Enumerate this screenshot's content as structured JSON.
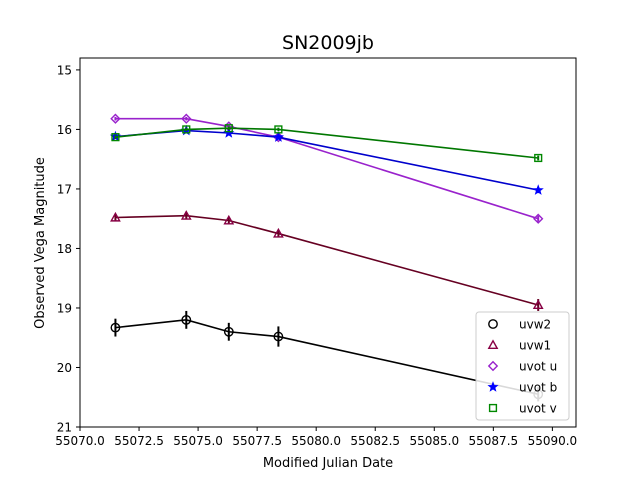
{
  "chart_data": {
    "type": "line",
    "title": "SN2009jb",
    "xlabel": "Modified Julian Date",
    "ylabel": "Observed Vega Magnitude",
    "xlim": [
      55070,
      55091
    ],
    "ylim": [
      21,
      14.8
    ],
    "y_inverted": true,
    "x_ticks": [
      55070.0,
      55072.5,
      55075.0,
      55077.5,
      55080.0,
      55082.5,
      55085.0,
      55087.5,
      55090.0
    ],
    "x_tick_labels": [
      "55070.0",
      "55072.5",
      "55075.0",
      "55077.5",
      "55080.0",
      "55082.5",
      "55085.0",
      "55087.5",
      "55090.0"
    ],
    "y_ticks": [
      15,
      16,
      17,
      18,
      19,
      20,
      21
    ],
    "y_tick_labels": [
      "15",
      "16",
      "17",
      "18",
      "19",
      "20",
      "21"
    ],
    "grid": false,
    "legend_position": "lower-right",
    "series": [
      {
        "name": "uvw2",
        "marker": "circle",
        "line_color": "#000000",
        "marker_color": "#000000",
        "x": [
          55071.5,
          55074.5,
          55076.3,
          55078.4,
          55089.4
        ],
        "y": [
          19.33,
          19.2,
          19.4,
          19.48,
          20.45
        ],
        "err": [
          0.15,
          0.15,
          0.15,
          0.17,
          0.12
        ]
      },
      {
        "name": "uvw1",
        "marker": "triangle",
        "line_color": "#660022",
        "marker_color": "#880044",
        "x": [
          55071.5,
          55074.5,
          55076.3,
          55078.4,
          55089.4
        ],
        "y": [
          17.48,
          17.45,
          17.53,
          17.75,
          18.95
        ],
        "err": [
          0.05,
          0.05,
          0.05,
          0.06,
          0.1
        ]
      },
      {
        "name": "uvot u",
        "marker": "diamond",
        "line_color": "#9922cc",
        "marker_color": "#9922cc",
        "x": [
          55071.5,
          55074.5,
          55076.3,
          55078.4,
          55089.4
        ],
        "y": [
          15.82,
          15.82,
          15.95,
          16.13,
          17.5
        ],
        "err": [
          0.03,
          0.03,
          0.03,
          0.03,
          0.05
        ]
      },
      {
        "name": "uvot b",
        "marker": "star",
        "line_color": "#0000cc",
        "marker_color": "#0000ff",
        "x": [
          55071.5,
          55074.5,
          55076.3,
          55078.4,
          55089.4
        ],
        "y": [
          16.12,
          16.02,
          16.06,
          16.13,
          17.02
        ],
        "err": [
          0.03,
          0.03,
          0.03,
          0.03,
          0.05
        ]
      },
      {
        "name": "uvot v",
        "marker": "square",
        "line_color": "#007700",
        "marker_color": "#008800",
        "x": [
          55071.5,
          55074.5,
          55076.3,
          55078.4,
          55089.4
        ],
        "y": [
          16.13,
          16.0,
          15.98,
          16.0,
          16.48
        ],
        "err": [
          0.03,
          0.03,
          0.03,
          0.03,
          0.04
        ]
      }
    ]
  }
}
